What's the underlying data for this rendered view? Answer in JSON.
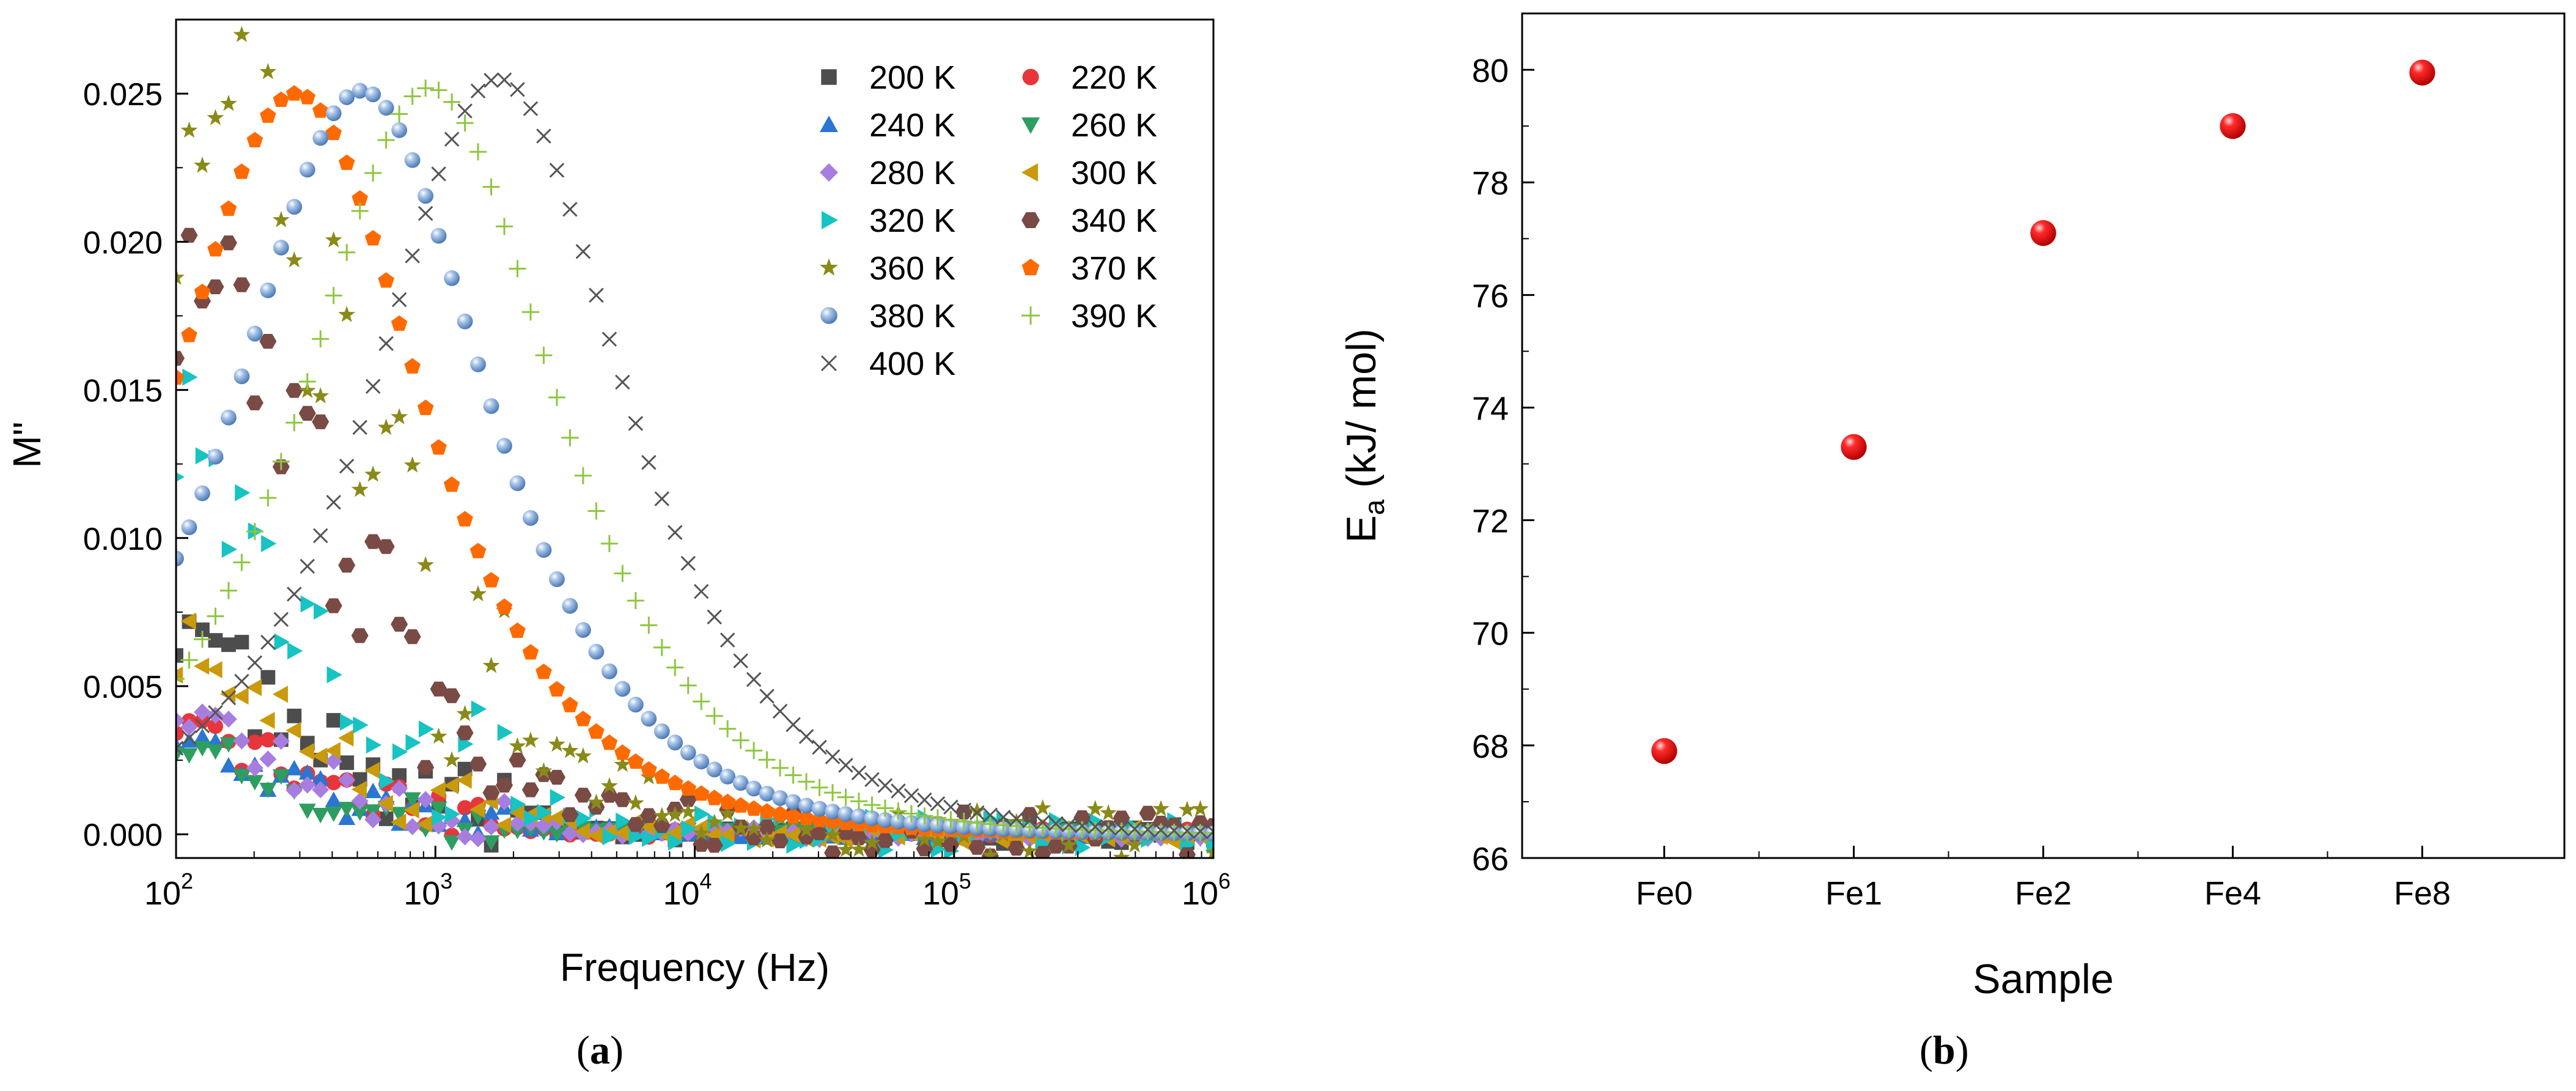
{
  "chart_data": [
    {
      "id": "a",
      "type": "scatter",
      "panel_label": "a",
      "xlabel": "Frequency (Hz)",
      "ylabel": "M\"",
      "xscale": "log",
      "xlim": [
        100,
        1000000
      ],
      "ylim": [
        -0.0008,
        0.0275
      ],
      "x_ticks": [
        {
          "base": "10",
          "exp": "2"
        },
        {
          "base": "10",
          "exp": "3"
        },
        {
          "base": "10",
          "exp": "4"
        },
        {
          "base": "10",
          "exp": "5"
        },
        {
          "base": "10",
          "exp": "6"
        }
      ],
      "y_ticks": [
        "0.000",
        "0.005",
        "0.010",
        "0.015",
        "0.020",
        "0.025"
      ],
      "y_tick_values": [
        0,
        0.005,
        0.01,
        0.015,
        0.02,
        0.025
      ],
      "legend_position": "top-right",
      "series": [
        {
          "name": "200 K",
          "marker": "square",
          "color": "#4d4d4d",
          "peak_freq": 60,
          "peak": 0.0085
        },
        {
          "name": "220 K",
          "marker": "circle",
          "color": "#e8353b",
          "peak_freq": 60,
          "peak": 0.0048
        },
        {
          "name": "240 K",
          "marker": "triangle-up",
          "color": "#2a76d2",
          "peak_freq": 60,
          "peak": 0.0042
        },
        {
          "name": "260 K",
          "marker": "triangle-down",
          "color": "#2e9e60",
          "peak_freq": 60,
          "peak": 0.0038
        },
        {
          "name": "280 K",
          "marker": "diamond",
          "color": "#a77ee0",
          "peak_freq": 70,
          "peak": 0.005
        },
        {
          "name": "300 K",
          "marker": "triangle-left",
          "color": "#c99a0c",
          "peak_freq": 70,
          "peak": 0.007
        },
        {
          "name": "320 K",
          "marker": "triangle-right",
          "color": "#17c3c3",
          "peak_freq": 80,
          "peak": 0.015
        },
        {
          "name": "340 K",
          "marker": "hexagon",
          "color": "#7a4a44",
          "peak_freq": 110,
          "peak": 0.0195
        },
        {
          "name": "360 K",
          "marker": "star",
          "color": "#8a8a18",
          "peak_freq": 150,
          "peak": 0.025
        },
        {
          "name": "370 K",
          "marker": "pentagon",
          "color": "#ff6a00",
          "peak_freq": 290,
          "peak": 0.025
        },
        {
          "name": "380 K",
          "marker": "sphere",
          "color": "#7fa6d6",
          "peak_freq": 520,
          "peak": 0.0251
        },
        {
          "name": "390 K",
          "marker": "plus",
          "color": "#8ec63f",
          "peak_freq": 950,
          "peak": 0.0252
        },
        {
          "name": "400 K",
          "marker": "cross",
          "color": "#555555",
          "peak_freq": 1750,
          "peak": 0.0255
        }
      ]
    },
    {
      "id": "b",
      "type": "scatter",
      "panel_label": "b",
      "xlabel": "Sample",
      "ylabel": "E",
      "ylabel_sub": "a",
      "ylabel_unit": " (kJ/ mol)",
      "categories": [
        "Fe0",
        "Fe1",
        "Fe2",
        "Fe4",
        "Fe8"
      ],
      "values": [
        67.9,
        73.3,
        77.1,
        79.0,
        79.95
      ],
      "ylim": [
        66,
        81
      ],
      "y_ticks": [
        "66",
        "68",
        "70",
        "72",
        "74",
        "76",
        "78",
        "80"
      ],
      "y_tick_values": [
        66,
        68,
        70,
        72,
        74,
        76,
        78,
        80
      ],
      "marker": "sphere",
      "color": "#ff1a1a"
    }
  ],
  "captions": {
    "a": "a",
    "b": "b"
  }
}
